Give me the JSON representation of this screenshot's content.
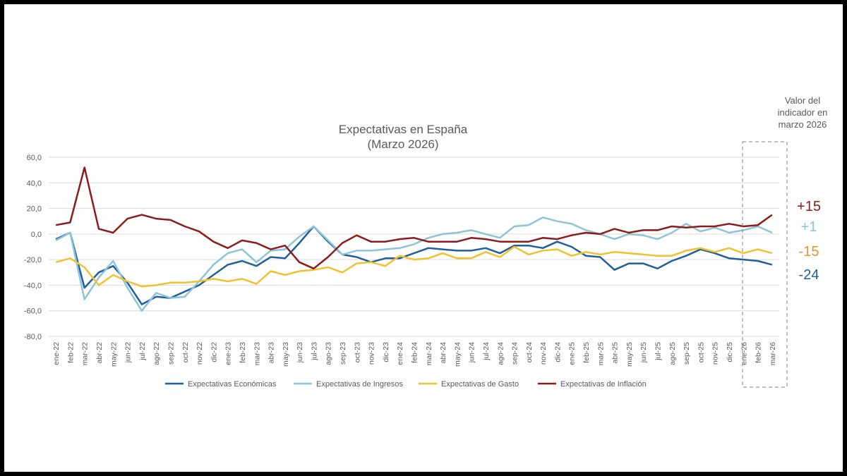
{
  "chart_data": {
    "type": "line",
    "title": "Expectativas en España",
    "subtitle": "(Marzo 2026)",
    "ylim": [
      -80,
      60
    ],
    "yticks": [
      "60,0",
      "40,0",
      "20,0",
      "0,0",
      "-20,0",
      "-40,0",
      "-60,0",
      "-80,0"
    ],
    "ytick_values": [
      60,
      40,
      20,
      0,
      -20,
      -40,
      -60,
      -80
    ],
    "grid": "horizontal",
    "legend_position": "bottom",
    "categories": [
      "ene-22",
      "feb-22",
      "mar-22",
      "abr-22",
      "may-22",
      "jun-22",
      "jul-22",
      "ago-22",
      "sep-22",
      "oct-22",
      "nov-22",
      "dic-22",
      "ene-23",
      "feb-23",
      "mar-23",
      "abr-23",
      "may-23",
      "jun-23",
      "jul-23",
      "ago-23",
      "sep-23",
      "oct-23",
      "nov-23",
      "dic-23",
      "ene-24",
      "feb-24",
      "mar-24",
      "abr-24",
      "may-24",
      "jun-24",
      "jul-24",
      "ago-24",
      "sep-24",
      "oct-24",
      "nov-24",
      "dic-24",
      "ene-25",
      "feb-25",
      "mar-25",
      "abr-25",
      "may-25",
      "jun-25",
      "jul-25",
      "ago-25",
      "sep-25",
      "oct-25",
      "nov-25",
      "dic-25",
      "ene-26",
      "feb-26",
      "mar-26"
    ],
    "series": [
      {
        "name": "Expectativas Económicas",
        "color": "#1F5F9B",
        "values": [
          -4,
          1,
          -42,
          -30,
          -25,
          -38,
          -55,
          -49,
          -50,
          -45,
          -40,
          -32,
          -24,
          -21,
          -25,
          -18,
          -19,
          -7,
          6,
          -6,
          -16,
          -18,
          -22,
          -19,
          -19,
          -15,
          -11,
          -12,
          -13,
          -13,
          -11,
          -15,
          -9,
          -9,
          -11,
          -6,
          -10,
          -17,
          -18,
          -28,
          -23,
          -23,
          -27,
          -21,
          -17,
          -12,
          -15,
          -19,
          -20,
          -21,
          -24
        ]
      },
      {
        "name": "Expectativas de Ingresos",
        "color": "#8DC3DB",
        "values": [
          -5,
          1,
          -51,
          -34,
          -21,
          -42,
          -60,
          -46,
          -50,
          -49,
          -37,
          -24,
          -15,
          -12,
          -22,
          -13,
          -12,
          -2,
          6,
          -5,
          -16,
          -13,
          -13,
          -12,
          -11,
          -8,
          -3,
          0,
          1,
          3,
          0,
          -3,
          6,
          7,
          13,
          10,
          8,
          3,
          0,
          -4,
          0,
          -1,
          -4,
          1,
          8,
          2,
          5,
          1,
          3,
          6,
          1
        ]
      },
      {
        "name": "Expectativas de Gasto",
        "color": "#F2C12E",
        "values": [
          -22,
          -19,
          -26,
          -40,
          -32,
          -37,
          -41,
          -40,
          -38,
          -38,
          -37,
          -35,
          -37,
          -35,
          -39,
          -29,
          -32,
          -29,
          -28,
          -26,
          -30,
          -23,
          -22,
          -25,
          -17,
          -20,
          -19,
          -15,
          -19,
          -19,
          -14,
          -18,
          -10,
          -16,
          -13,
          -12,
          -17,
          -14,
          -16,
          -14,
          -15,
          -16,
          -17,
          -17,
          -13,
          -11,
          -14,
          -11,
          -15,
          -12,
          -15
        ]
      },
      {
        "name": "Expectativas de Inflación",
        "color": "#8E1B1B",
        "values": [
          7,
          9,
          52,
          4,
          1,
          12,
          15,
          12,
          11,
          6,
          2,
          -6,
          -11,
          -5,
          -7,
          -12,
          -9,
          -22,
          -27,
          -18,
          -7,
          -1,
          -6,
          -6,
          -4,
          -3,
          -6,
          -6,
          -6,
          -3,
          -4,
          -6,
          -6,
          -6,
          -3,
          -4,
          -1,
          1,
          0,
          4,
          1,
          3,
          3,
          6,
          5,
          6,
          6,
          8,
          6,
          7,
          15
        ]
      }
    ],
    "highlight_box_label": "Valor del indicador en marzo 2026",
    "final_labels": [
      {
        "text": "+15",
        "color": "#8E1B1B"
      },
      {
        "text": "+1",
        "color": "#8DC3DB"
      },
      {
        "text": "-15",
        "color": "#E5952A"
      },
      {
        "text": "-24",
        "color": "#1F5F9B"
      }
    ]
  }
}
